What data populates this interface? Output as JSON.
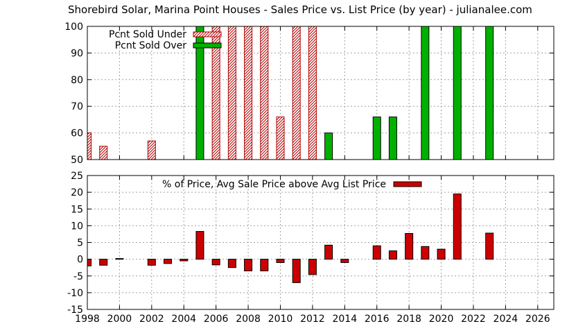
{
  "title": "Shorebird Solar, Marina Point Houses - Sales Price vs. List Price (by year) - julianalee.com",
  "colors": {
    "under_fill": "#f2c6c6",
    "under_stroke": "#b00000",
    "over_fill": "#00b000",
    "avg_fill": "#cc0000"
  },
  "chart_data": [
    {
      "type": "bar",
      "title": "",
      "xlim": [
        1998,
        2027
      ],
      "ylim": [
        50,
        100
      ],
      "yticks": [
        50,
        60,
        70,
        80,
        90,
        100
      ],
      "grid": true,
      "legend_position": "top-left",
      "series": [
        {
          "name": "Pcnt Sold Under",
          "x": [
            1998,
            1999,
            2002,
            2006,
            2007,
            2008,
            2009,
            2010,
            2011,
            2012
          ],
          "values": [
            60,
            55,
            57,
            100,
            100,
            100,
            100,
            66,
            100,
            100
          ]
        },
        {
          "name": "Pcnt Sold Over",
          "x": [
            2005,
            2013,
            2016,
            2017,
            2019,
            2021,
            2023
          ],
          "values": [
            100,
            60,
            66,
            66,
            100,
            100,
            100
          ]
        }
      ]
    },
    {
      "type": "bar",
      "title": "",
      "xlim": [
        1998,
        2027
      ],
      "ylim": [
        -15,
        25
      ],
      "yticks": [
        -15,
        -10,
        -5,
        0,
        5,
        10,
        15,
        20,
        25
      ],
      "xticks": [
        1998,
        2000,
        2002,
        2004,
        2006,
        2008,
        2010,
        2012,
        2014,
        2016,
        2018,
        2020,
        2022,
        2024,
        2026
      ],
      "grid": true,
      "legend_position": "top-center",
      "series": [
        {
          "name": "% of Price, Avg Sale Price above Avg List Price",
          "x": [
            1998,
            1999,
            2000,
            2002,
            2003,
            2004,
            2005,
            2006,
            2007,
            2008,
            2009,
            2010,
            2011,
            2012,
            2013,
            2014,
            2016,
            2017,
            2018,
            2019,
            2020,
            2021,
            2023
          ],
          "values": [
            -2,
            -1.8,
            0.2,
            -1.8,
            -1.3,
            -0.5,
            8.3,
            -1.7,
            -2.5,
            -3.5,
            -3.5,
            -1,
            -7,
            -4.6,
            4.2,
            -1,
            4,
            2.5,
            7.7,
            3.8,
            3,
            19.5,
            7.8
          ]
        }
      ]
    }
  ]
}
